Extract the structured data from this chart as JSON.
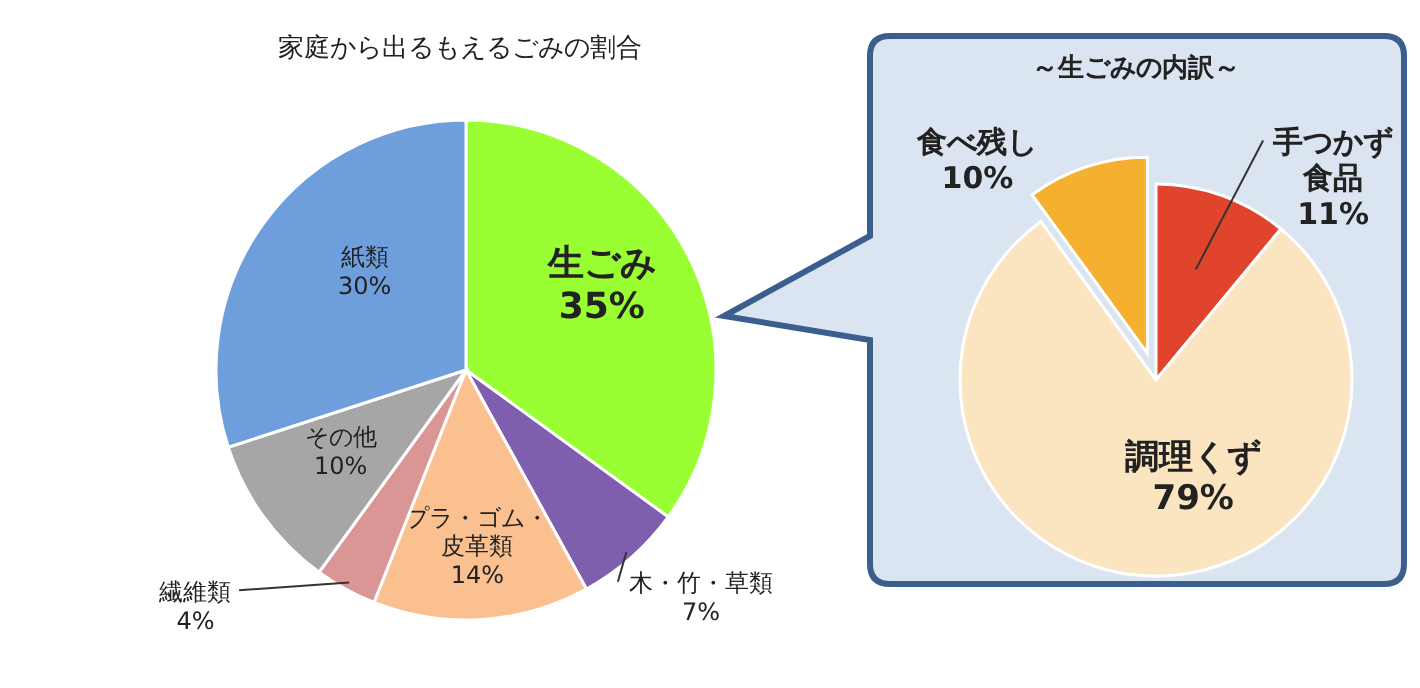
{
  "chart_data": [
    {
      "type": "pie",
      "title": "家庭から出るもえるごみの割合",
      "categories": [
        "生ごみ",
        "木・竹・草類",
        "プラ・ゴム・皮革類",
        "繊維類",
        "その他",
        "紙類"
      ],
      "values": [
        35,
        7,
        14,
        4,
        10,
        30
      ],
      "value_labels": [
        "35%",
        "7%",
        "14%",
        "4%",
        "10%",
        "30%"
      ],
      "colors": [
        "#99ff33",
        "#7f5fad",
        "#fac090",
        "#d99694",
        "#a6a6a6",
        "#6e9fdc"
      ]
    },
    {
      "type": "pie",
      "title": "～生ごみの内訳～",
      "categories": [
        "手つかず食品",
        "調理くず",
        "食べ残し"
      ],
      "values": [
        11,
        79,
        10
      ],
      "value_labels": [
        "11%",
        "79%",
        "10%"
      ],
      "colors": [
        "#e0442c",
        "#fbe5c0",
        "#f5b030"
      ]
    }
  ]
}
